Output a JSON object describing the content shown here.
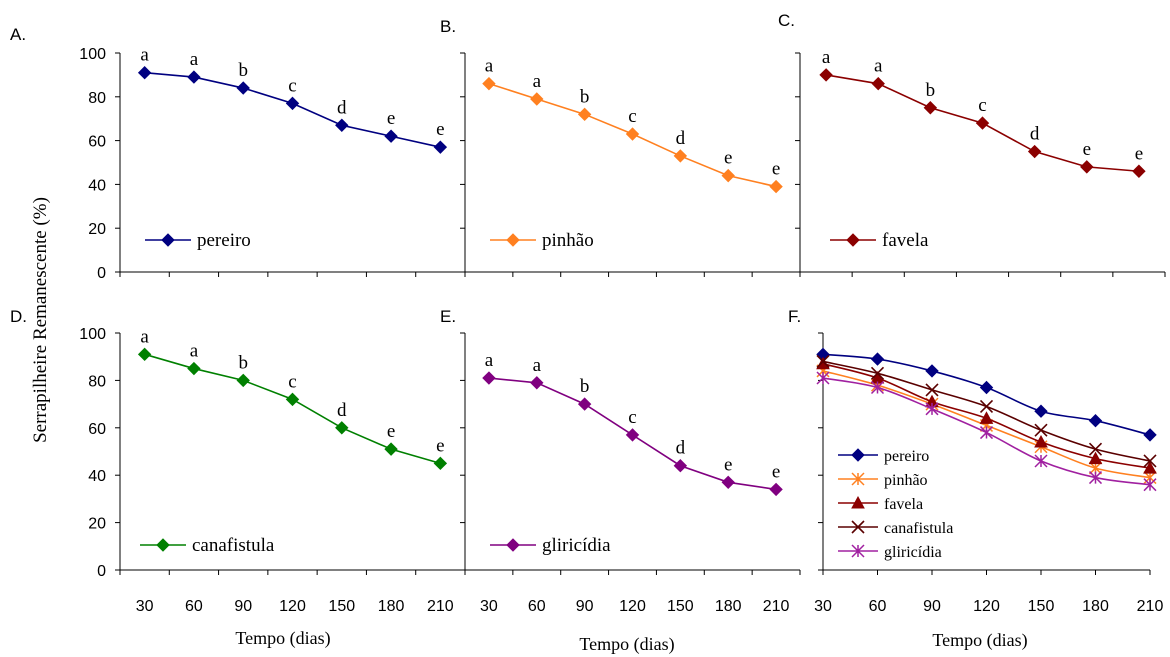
{
  "figure": {
    "ylabel": "Serrapilheire Remanescente (%)",
    "xlabel": "Tempo (dias)"
  },
  "chart_data": [
    {
      "type": "line",
      "panel_label": "A.",
      "x": [
        30,
        60,
        90,
        120,
        150,
        180,
        210
      ],
      "xlim": [
        15,
        225
      ],
      "ylim": [
        0,
        100
      ],
      "yticks": [
        0,
        20,
        40,
        60,
        80,
        100
      ],
      "show_yticklabels": true,
      "show_xticklabels": false,
      "series": [
        {
          "name": "pereiro",
          "color": "#000080",
          "marker": "diamond",
          "values": [
            91,
            89,
            84,
            77,
            67,
            62,
            57
          ],
          "labels": [
            "a",
            "a",
            "b",
            "c",
            "d",
            "e",
            "e"
          ]
        }
      ],
      "legend_position": "bottom-left"
    },
    {
      "type": "line",
      "panel_label": "B.",
      "x": [
        30,
        60,
        90,
        120,
        150,
        180,
        210
      ],
      "xlim": [
        15,
        225
      ],
      "ylim": [
        0,
        100
      ],
      "yticks": [
        0,
        20,
        40,
        60,
        80,
        100
      ],
      "show_yticklabels": false,
      "show_xticklabels": false,
      "series": [
        {
          "name": "pinhão",
          "color": "#FF8020",
          "marker": "diamond",
          "values": [
            86,
            79,
            72,
            63,
            53,
            44,
            39
          ],
          "labels": [
            "a",
            "a",
            "b",
            "c",
            "d",
            "e",
            "e"
          ]
        }
      ],
      "legend_position": "bottom-left"
    },
    {
      "type": "line",
      "panel_label": "C.",
      "x": [
        30,
        60,
        90,
        120,
        150,
        180,
        210
      ],
      "xlim": [
        15,
        225
      ],
      "ylim": [
        0,
        100
      ],
      "yticks": [
        0,
        20,
        40,
        60,
        80,
        100
      ],
      "show_yticklabels": false,
      "show_xticklabels": false,
      "series": [
        {
          "name": "favela",
          "color": "#8B0000",
          "marker": "diamond",
          "values": [
            90,
            86,
            75,
            68,
            55,
            48,
            46
          ],
          "labels": [
            "a",
            "a",
            "b",
            "c",
            "d",
            "e",
            "e"
          ]
        }
      ],
      "legend_position": "bottom-left"
    },
    {
      "type": "line",
      "panel_label": "D.",
      "x": [
        30,
        60,
        90,
        120,
        150,
        180,
        210
      ],
      "xlim": [
        15,
        225
      ],
      "ylim": [
        0,
        100
      ],
      "yticks": [
        0,
        20,
        40,
        60,
        80,
        100
      ],
      "show_yticklabels": true,
      "show_xticklabels": true,
      "series": [
        {
          "name": "canafistula",
          "color": "#008000",
          "marker": "diamond",
          "values": [
            91,
            85,
            80,
            72,
            60,
            51,
            45
          ],
          "labels": [
            "a",
            "a",
            "b",
            "c",
            "d",
            "e",
            "e"
          ]
        }
      ],
      "legend_position": "bottom-left"
    },
    {
      "type": "line",
      "panel_label": "E.",
      "x": [
        30,
        60,
        90,
        120,
        150,
        180,
        210
      ],
      "xlim": [
        15,
        225
      ],
      "ylim": [
        0,
        100
      ],
      "yticks": [
        0,
        20,
        40,
        60,
        80,
        100
      ],
      "show_yticklabels": false,
      "show_xticklabels": true,
      "series": [
        {
          "name": "gliricídia",
          "color": "#800080",
          "marker": "diamond",
          "values": [
            81,
            79,
            70,
            57,
            44,
            37,
            34
          ],
          "labels": [
            "a",
            "a",
            "b",
            "c",
            "d",
            "e",
            "e"
          ]
        }
      ],
      "legend_position": "bottom-left"
    },
    {
      "type": "line",
      "panel_label": "F.",
      "x": [
        30,
        60,
        90,
        120,
        150,
        180,
        210
      ],
      "xlim": [
        30,
        210
      ],
      "ylim": [
        0,
        100
      ],
      "yticks": [
        0,
        20,
        40,
        60,
        80,
        100
      ],
      "show_yticklabels": false,
      "show_xticklabels": true,
      "series": [
        {
          "name": "pereiro",
          "color": "#000080",
          "marker": "diamond",
          "values": [
            91,
            89,
            84,
            77,
            67,
            63,
            57
          ]
        },
        {
          "name": "pinhão",
          "color": "#FF8020",
          "marker": "asterisk",
          "values": [
            84,
            78,
            70,
            61,
            52,
            43,
            39
          ]
        },
        {
          "name": "favela",
          "color": "#8B0000",
          "marker": "triangle",
          "values": [
            87,
            81,
            71,
            64,
            54,
            47,
            43
          ]
        },
        {
          "name": "canafistula",
          "color": "#5A0000",
          "marker": "x",
          "values": [
            88,
            83,
            76,
            69,
            59,
            51,
            46
          ]
        },
        {
          "name": "gliricídia",
          "color": "#A020A0",
          "marker": "asterisk",
          "values": [
            81,
            77,
            68,
            58,
            46,
            39,
            36
          ]
        }
      ],
      "legend_position": "bottom-left"
    }
  ]
}
